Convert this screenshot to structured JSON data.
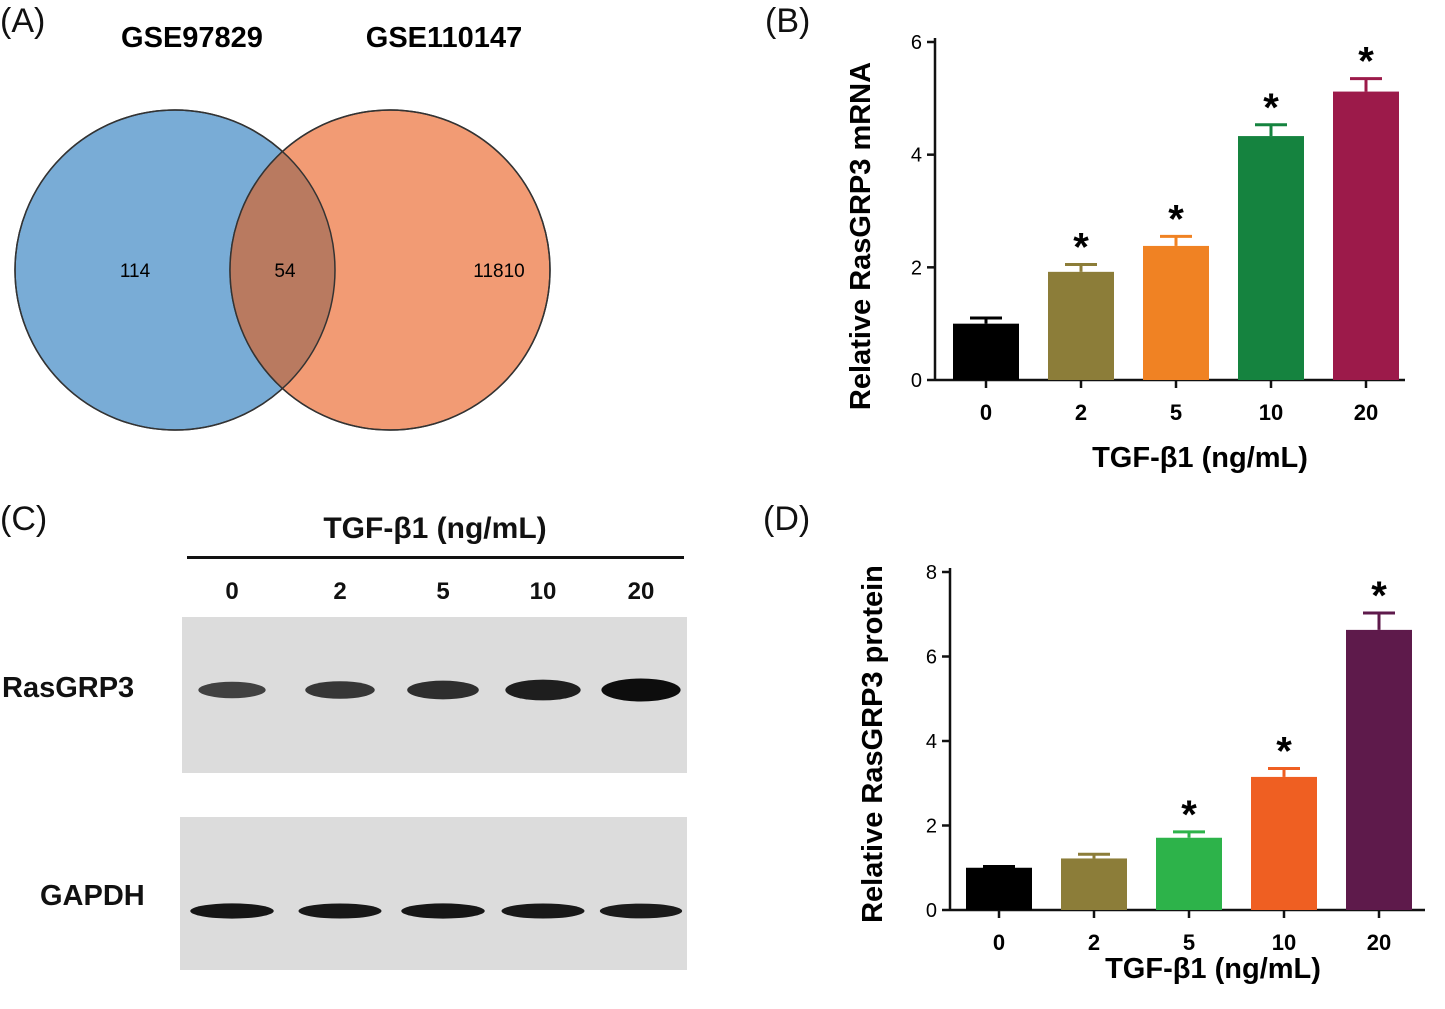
{
  "panels": {
    "a": "(A)",
    "b": "(B)",
    "c": "(C)",
    "d": "(D)"
  },
  "venn": {
    "left_set": "GSE97829",
    "right_set": "GSE110147",
    "left_only": "114",
    "overlap": "54",
    "right_only": "11810",
    "colors": {
      "left": "#79acd6",
      "right": "#f29b74",
      "overlap": "#b97a60"
    }
  },
  "western": {
    "header": "TGF-β1 (ng/mL)",
    "lanes": [
      "0",
      "2",
      "5",
      "10",
      "20"
    ],
    "rows": [
      "RasGRP3",
      "GAPDH"
    ],
    "band_intensity": {
      "RasGRP3": [
        0.45,
        0.55,
        0.65,
        0.82,
        1.0
      ],
      "GAPDH": [
        0.9,
        0.88,
        0.9,
        0.88,
        0.85
      ]
    }
  },
  "chart_data": [
    {
      "type": "bar",
      "categories": [
        "0",
        "2",
        "5",
        "10",
        "20"
      ],
      "values": [
        1.0,
        1.92,
        2.38,
        4.33,
        5.12
      ],
      "errors": [
        0.1,
        0.13,
        0.17,
        0.2,
        0.23
      ],
      "significance": [
        "",
        "*",
        "*",
        "*",
        "*"
      ],
      "colors": [
        "#000000",
        "#8c7d39",
        "#f08223",
        "#15833f",
        "#9c1a4a"
      ],
      "xlabel": "TGF-β1 (ng/mL)",
      "ylabel": "Relative  RasGRP3  mRNA",
      "ylim": [
        0,
        6
      ],
      "yticks": [
        "0",
        "2",
        "4",
        "6"
      ]
    },
    {
      "type": "bar",
      "categories": [
        "0",
        "2",
        "5",
        "10",
        "20"
      ],
      "values": [
        1.0,
        1.22,
        1.71,
        3.15,
        6.63
      ],
      "errors": [
        0.03,
        0.1,
        0.14,
        0.2,
        0.4
      ],
      "significance": [
        "",
        "",
        "*",
        "*",
        "*"
      ],
      "colors": [
        "#000000",
        "#8c7d39",
        "#2db34a",
        "#ef5f22",
        "#5e1a4b"
      ],
      "xlabel": "TGF-β1 (ng/mL)",
      "ylabel": "Relative  RasGRP3  protein",
      "ylim": [
        0,
        8
      ],
      "yticks": [
        "0",
        "2",
        "4",
        "6",
        "8"
      ]
    }
  ]
}
